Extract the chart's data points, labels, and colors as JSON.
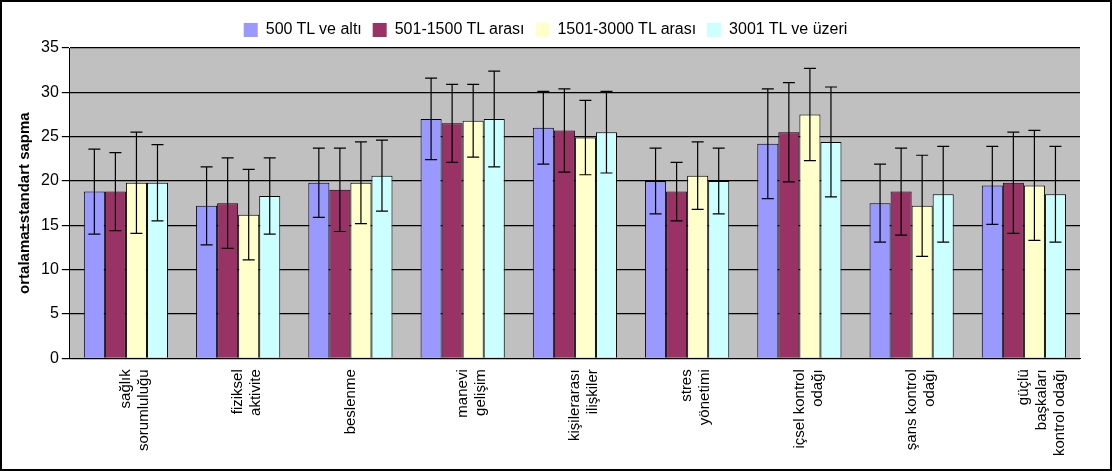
{
  "chart_data": {
    "type": "bar",
    "ylabel": "ortalama±standart sapma",
    "categories": [
      "sağlık\nsorumluluğu",
      "fiziksel\naktivite",
      "beslenme",
      "manevi\ngelişim",
      "kişilerarası\nilişkiler",
      "stres\nyönetimi",
      "içsel kontrol\nodağı",
      "şans kontrol\nodağı",
      "güçlü\nbaşkaları\nkontrol odağı"
    ],
    "series": [
      {
        "name": "500 TL ve altı",
        "color": "#9999ff",
        "values": [
          18.8,
          17.2,
          19.8,
          27.0,
          26.0,
          20.0,
          24.2,
          17.5,
          19.5
        ],
        "errors": [
          4.8,
          4.4,
          3.9,
          4.6,
          4.1,
          3.7,
          6.2,
          4.4,
          4.4
        ]
      },
      {
        "name": "501-1500 TL arası",
        "color": "#993366",
        "values": [
          18.8,
          17.5,
          19.0,
          26.5,
          25.7,
          18.8,
          25.5,
          18.8,
          19.8
        ],
        "errors": [
          4.4,
          5.1,
          4.7,
          4.4,
          4.7,
          3.3,
          5.6,
          4.9,
          5.7
        ]
      },
      {
        "name": "1501-3000 TL arası",
        "color": "#ffffcc",
        "values": [
          19.8,
          16.2,
          19.8,
          26.8,
          24.9,
          20.6,
          27.5,
          17.2,
          19.5
        ],
        "errors": [
          5.7,
          5.1,
          4.6,
          4.1,
          4.2,
          3.8,
          5.2,
          5.7,
          6.2
        ]
      },
      {
        "name": "3001 TL ve üzeri",
        "color": "#ccffff",
        "values": [
          19.8,
          18.3,
          20.6,
          27.0,
          25.5,
          20.0,
          24.4,
          18.5,
          18.5
        ],
        "errors": [
          4.3,
          4.3,
          4.0,
          5.4,
          4.6,
          3.7,
          6.2,
          5.4,
          5.4
        ]
      }
    ],
    "ylim": [
      0,
      35
    ],
    "yticks": [
      0,
      5,
      10,
      15,
      20,
      25,
      30,
      35
    ],
    "grid": "y",
    "legend": "top"
  }
}
